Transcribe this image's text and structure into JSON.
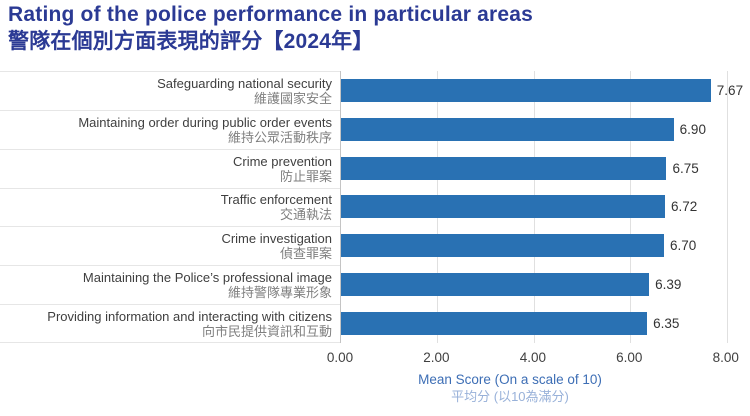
{
  "title": {
    "en": "Rating of the police performance in particular areas",
    "zh": "警隊在個別方面表現的評分【2024年】"
  },
  "colors": {
    "background": "#FFFFFF",
    "title": "#2B3A94",
    "bar": "#2971B3",
    "category_en_text": "#3F3F3F",
    "category_zh_text": "#7F7F7F",
    "value_text": "#333333",
    "tick_text": "#404040",
    "axis_label_en": "#3D6EB5",
    "axis_label_zh": "#98B1D9",
    "gridline": "#E0E0E0",
    "separator": "#E6E6E6",
    "axis_line": "#C4C4C4"
  },
  "chart_data": {
    "type": "bar",
    "orientation": "horizontal",
    "title_en": "Rating of the police performance in particular areas",
    "title_zh": "警隊在個別方面表現的評分【2024年】",
    "categories_en": [
      "Safeguarding national security",
      "Maintaining order during public order events",
      "Crime prevention",
      "Traffic enforcement",
      "Crime investigation",
      "Maintaining the Police’s professional image",
      "Providing information and interacting with citizens"
    ],
    "categories_zh": [
      "維護國家安全",
      "維持公眾活動秩序",
      "防止罪案",
      "交通執法",
      "偵查罪案",
      "維持警隊專業形象",
      "向市民提供資訊和互動"
    ],
    "values": [
      7.67,
      6.9,
      6.75,
      6.72,
      6.7,
      6.39,
      6.35
    ],
    "value_labels": [
      "7.67",
      "6.90",
      "6.75",
      "6.72",
      "6.70",
      "6.39",
      "6.35"
    ],
    "xlabel_en": "Mean Score (On a scale of 10)",
    "xlabel_zh": "平均分 (以10為滿分)",
    "xlim": [
      0,
      8.4
    ],
    "xtick_values": [
      0,
      2,
      4,
      6,
      8
    ],
    "xticks": [
      "0.00",
      "2.00",
      "4.00",
      "6.00",
      "8.00"
    ],
    "gridlines": [
      2,
      4,
      6,
      8
    ],
    "grid": "vertical-only",
    "legend": "none",
    "data_labels": "outside-end"
  }
}
